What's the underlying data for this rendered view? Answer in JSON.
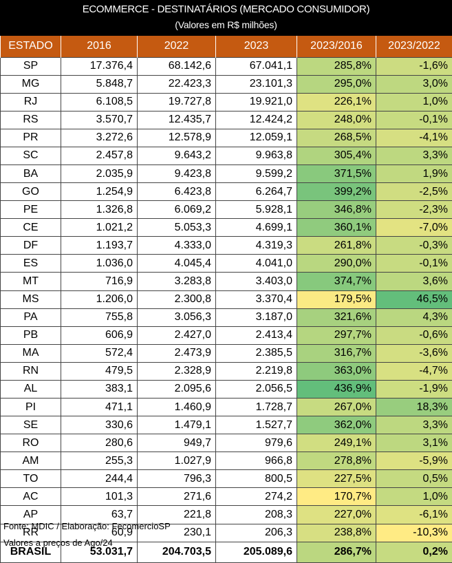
{
  "title": "ECOMMERCE - DESTINATÁRIOS (MERCADO CONSUMIDOR)",
  "subtitle": "(Valores em R$ milhões)",
  "columns": [
    "ESTADO",
    "2016",
    "2022",
    "2023",
    "2023/2016",
    "2023/2022"
  ],
  "colors": {
    "header_bg": "#c55a11",
    "title_bg": "#000000",
    "scale_low": "#ffeb84",
    "scale_high": "#63be7b"
  },
  "rows": [
    {
      "estado": "SP",
      "v2016": "17.376,4",
      "v2022": "68.142,6",
      "v2023": "67.041,1",
      "g1": "285,8%",
      "g2": "-1,6%"
    },
    {
      "estado": "MG",
      "v2016": "5.848,7",
      "v2022": "22.423,3",
      "v2023": "23.101,3",
      "g1": "295,0%",
      "g2": "3,0%"
    },
    {
      "estado": "RJ",
      "v2016": "6.108,5",
      "v2022": "19.727,8",
      "v2023": "19.921,0",
      "g1": "226,1%",
      "g2": "1,0%"
    },
    {
      "estado": "RS",
      "v2016": "3.570,7",
      "v2022": "12.435,7",
      "v2023": "12.424,2",
      "g1": "248,0%",
      "g2": "-0,1%"
    },
    {
      "estado": "PR",
      "v2016": "3.272,6",
      "v2022": "12.578,9",
      "v2023": "12.059,1",
      "g1": "268,5%",
      "g2": "-4,1%"
    },
    {
      "estado": "SC",
      "v2016": "2.457,8",
      "v2022": "9.643,2",
      "v2023": "9.963,8",
      "g1": "305,4%",
      "g2": "3,3%"
    },
    {
      "estado": "BA",
      "v2016": "2.035,9",
      "v2022": "9.423,8",
      "v2023": "9.599,2",
      "g1": "371,5%",
      "g2": "1,9%"
    },
    {
      "estado": "GO",
      "v2016": "1.254,9",
      "v2022": "6.423,8",
      "v2023": "6.264,7",
      "g1": "399,2%",
      "g2": "-2,5%"
    },
    {
      "estado": "PE",
      "v2016": "1.326,8",
      "v2022": "6.069,2",
      "v2023": "5.928,1",
      "g1": "346,8%",
      "g2": "-2,3%"
    },
    {
      "estado": "CE",
      "v2016": "1.021,2",
      "v2022": "5.053,3",
      "v2023": "4.699,1",
      "g1": "360,1%",
      "g2": "-7,0%"
    },
    {
      "estado": "DF",
      "v2016": "1.193,7",
      "v2022": "4.333,0",
      "v2023": "4.319,3",
      "g1": "261,8%",
      "g2": "-0,3%"
    },
    {
      "estado": "ES",
      "v2016": "1.036,0",
      "v2022": "4.045,4",
      "v2023": "4.041,0",
      "g1": "290,0%",
      "g2": "-0,1%"
    },
    {
      "estado": "MT",
      "v2016": "716,9",
      "v2022": "3.283,8",
      "v2023": "3.403,0",
      "g1": "374,7%",
      "g2": "3,6%"
    },
    {
      "estado": "MS",
      "v2016": "1.206,0",
      "v2022": "2.300,8",
      "v2023": "3.370,4",
      "g1": "179,5%",
      "g2": "46,5%"
    },
    {
      "estado": "PA",
      "v2016": "755,8",
      "v2022": "3.056,3",
      "v2023": "3.187,0",
      "g1": "321,6%",
      "g2": "4,3%"
    },
    {
      "estado": "PB",
      "v2016": "606,9",
      "v2022": "2.427,0",
      "v2023": "2.413,4",
      "g1": "297,7%",
      "g2": "-0,6%"
    },
    {
      "estado": "MA",
      "v2016": "572,4",
      "v2022": "2.473,9",
      "v2023": "2.385,5",
      "g1": "316,7%",
      "g2": "-3,6%"
    },
    {
      "estado": "RN",
      "v2016": "479,5",
      "v2022": "2.328,9",
      "v2023": "2.219,8",
      "g1": "363,0%",
      "g2": "-4,7%"
    },
    {
      "estado": "AL",
      "v2016": "383,1",
      "v2022": "2.095,6",
      "v2023": "2.056,5",
      "g1": "436,9%",
      "g2": "-1,9%"
    },
    {
      "estado": "PI",
      "v2016": "471,1",
      "v2022": "1.460,9",
      "v2023": "1.728,7",
      "g1": "267,0%",
      "g2": "18,3%"
    },
    {
      "estado": "SE",
      "v2016": "330,6",
      "v2022": "1.479,1",
      "v2023": "1.527,7",
      "g1": "362,0%",
      "g2": "3,3%"
    },
    {
      "estado": "RO",
      "v2016": "280,6",
      "v2022": "949,7",
      "v2023": "979,6",
      "g1": "249,1%",
      "g2": "3,1%"
    },
    {
      "estado": "AM",
      "v2016": "255,3",
      "v2022": "1.027,9",
      "v2023": "966,8",
      "g1": "278,8%",
      "g2": "-5,9%"
    },
    {
      "estado": "TO",
      "v2016": "244,4",
      "v2022": "796,3",
      "v2023": "800,5",
      "g1": "227,5%",
      "g2": "0,5%"
    },
    {
      "estado": "AC",
      "v2016": "101,3",
      "v2022": "271,6",
      "v2023": "274,2",
      "g1": "170,7%",
      "g2": "1,0%"
    },
    {
      "estado": "AP",
      "v2016": "63,7",
      "v2022": "221,8",
      "v2023": "208,3",
      "g1": "227,0%",
      "g2": "-6,1%"
    },
    {
      "estado": "RR",
      "v2016": "60,9",
      "v2022": "230,1",
      "v2023": "206,3",
      "g1": "238,8%",
      "g2": "-10,3%"
    }
  ],
  "total": {
    "estado": "BRASIL",
    "v2016": "53.031,7",
    "v2022": "204.703,5",
    "v2023": "205.089,6",
    "g1": "286,7%",
    "g2": "0,2%"
  },
  "footnotes": [
    "Fonte: MDIC / Elaboração: FecomercioSP",
    "Valores a preços de Ago/24"
  ]
}
